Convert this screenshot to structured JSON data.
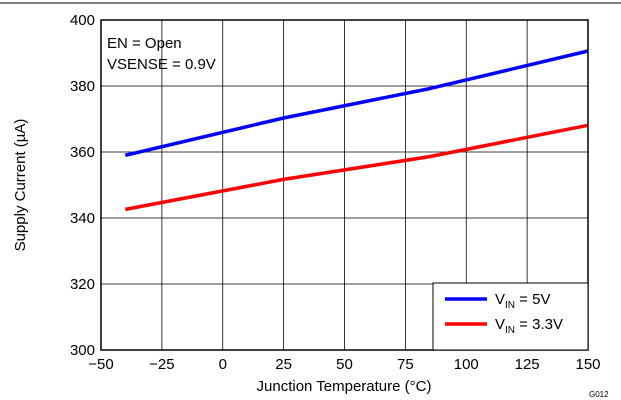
{
  "chart_data": {
    "type": "line",
    "xlabel": "Junction Temperature (°C)",
    "ylabel": "Supply Current (µA)",
    "xlim": [
      -50,
      150
    ],
    "ylim": [
      300,
      400
    ],
    "xticks": [
      -50,
      -25,
      0,
      25,
      50,
      75,
      100,
      125,
      150
    ],
    "yticks": [
      300,
      320,
      340,
      360,
      380,
      400
    ],
    "xtick_labels": [
      "−50",
      "−25",
      "0",
      "25",
      "50",
      "75",
      "100",
      "125",
      "150"
    ],
    "ytick_labels": [
      "300",
      "320",
      "340",
      "360",
      "380",
      "400"
    ],
    "grid": true,
    "annotations": [
      "EN = Open",
      "VSENSE = 0.9V"
    ],
    "figure_id": "G012",
    "legend_position": "bottom-right",
    "series": [
      {
        "name_main": "V",
        "name_sub": "IN",
        "name_suffix": " = 5V",
        "color": "#0000ff",
        "x": [
          -40,
          25,
          85,
          150
        ],
        "y": [
          359.0,
          370.3,
          379.2,
          390.6
        ]
      },
      {
        "name_main": "V",
        "name_sub": "IN",
        "name_suffix": " = 3.3V",
        "color": "#ff0000",
        "x": [
          -40,
          25,
          85,
          150
        ],
        "y": [
          342.6,
          351.7,
          358.6,
          368.1
        ]
      }
    ]
  }
}
